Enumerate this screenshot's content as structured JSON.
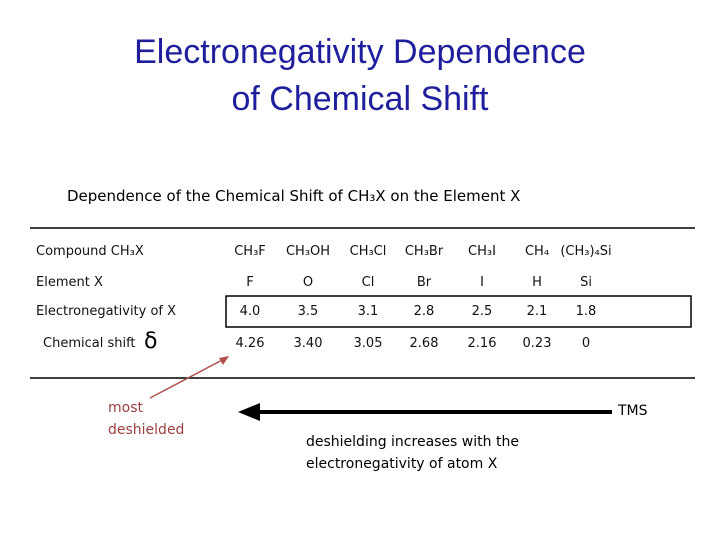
{
  "title": {
    "lines": [
      "Electronegativity Dependence",
      "of Chemical Shift"
    ]
  },
  "subtitle": "Dependence of the Chemical Shift of CH₃X on the Element X",
  "table": {
    "rows": [
      {
        "label": "Compound CH₃X",
        "cells": [
          "CH₃F",
          "CH₃OH",
          "CH₃Cl",
          "CH₃Br",
          "CH₃I",
          "CH₄",
          "(CH₃)₄Si"
        ]
      },
      {
        "label": "Element X",
        "cells": [
          "F",
          "O",
          "Cl",
          "Br",
          "I",
          "H",
          "Si"
        ]
      },
      {
        "label": "Electronegativity of X",
        "cells": [
          "4.0",
          "3.5",
          "3.1",
          "2.8",
          "2.5",
          "2.1",
          "1.8"
        ]
      },
      {
        "label": "Chemical shift",
        "symbol": "δ",
        "cells": [
          "4.26",
          "3.40",
          "3.05",
          "2.68",
          "2.16",
          "0.23",
          "0"
        ]
      }
    ]
  },
  "annotations": {
    "left": [
      "most",
      "deshielded"
    ],
    "right": "TMS",
    "bottom": [
      "deshielding increases with the",
      "electronegativity of atom X"
    ]
  }
}
